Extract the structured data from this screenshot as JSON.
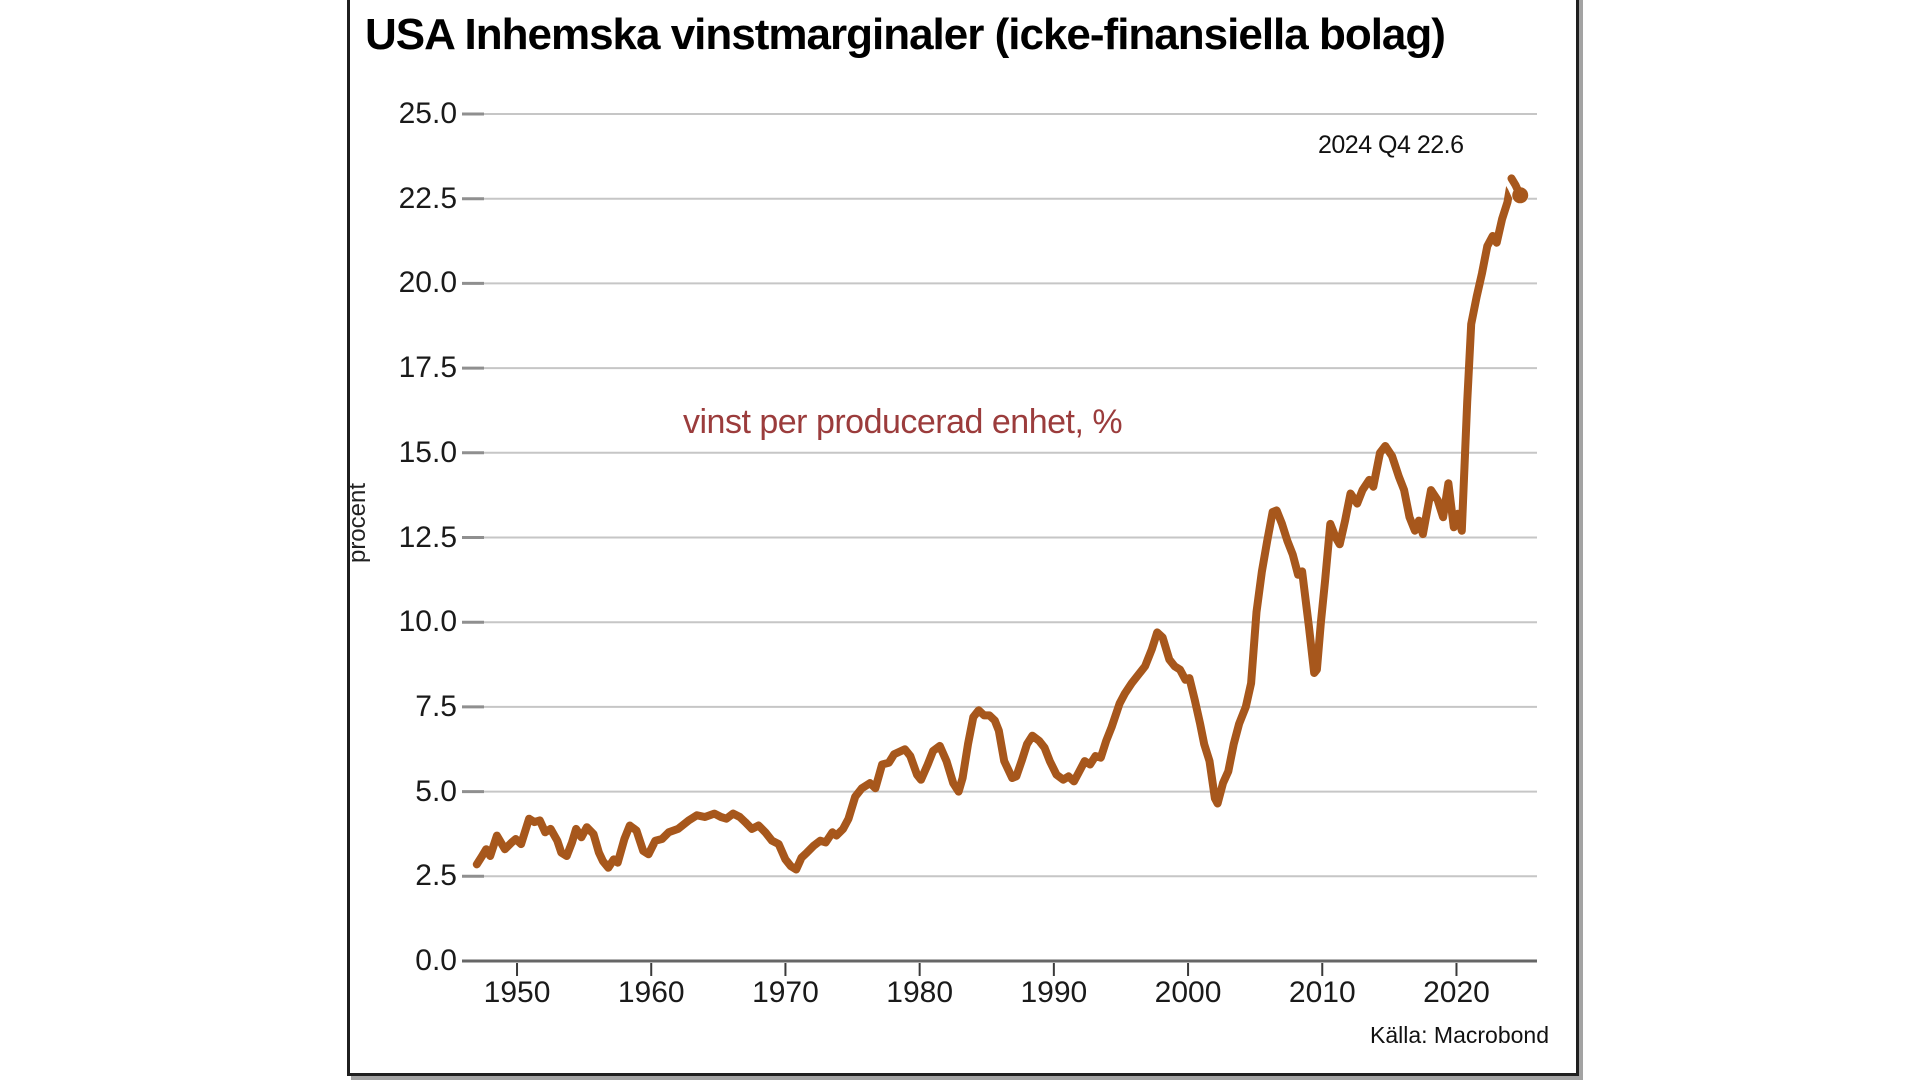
{
  "source": "Källa: Macrobond",
  "colors": {
    "line": "#A7571C",
    "series_label_text": "#9B3C3C",
    "grid": "#c6c6c6",
    "y_tick": "#8f8f8f",
    "x_tick": "#3a3a3a",
    "zero_axis": "#666666",
    "frame": "#1f1f1f",
    "frame_shadow": "#a3a3a3",
    "text": "#1a1a1a"
  },
  "chart_data": {
    "type": "line",
    "title": "USA Inhemska vinstmarginaler (icke-finansiella bolag)",
    "subtitle": "",
    "xlabel": "",
    "ylabel": "procent",
    "grid": "horizontal",
    "legend_position": "none",
    "ylim": [
      0,
      25
    ],
    "ytick_labels": [
      "0.0",
      "2.5",
      "5.0",
      "7.5",
      "10.0",
      "12.5",
      "15.0",
      "17.5",
      "20.0",
      "22.5",
      "25.0"
    ],
    "ytick_values": [
      0,
      2.5,
      5,
      7.5,
      10,
      12.5,
      15,
      17.5,
      20,
      22.5,
      25
    ],
    "xlim": [
      1945.9,
      2026.0
    ],
    "xtick_values": [
      1950,
      1960,
      1970,
      1980,
      1990,
      2000,
      2010,
      2020
    ],
    "xtick_labels": [
      "1950",
      "1960",
      "1970",
      "1980",
      "1990",
      "2000",
      "2010",
      "2020"
    ],
    "end_annotation": "2024 Q4 22.6",
    "end_point": [
      2024.75,
      22.6
    ],
    "series": [
      {
        "name": "vinst per producerad enhet, %",
        "color": "#A7571C",
        "points": [
          [
            1947.0,
            2.85
          ],
          [
            1947.4,
            3.1
          ],
          [
            1947.7,
            3.3
          ],
          [
            1948.0,
            3.1
          ],
          [
            1948.5,
            3.7
          ],
          [
            1949.1,
            3.3
          ],
          [
            1949.6,
            3.5
          ],
          [
            1949.9,
            3.6
          ],
          [
            1950.3,
            3.45
          ],
          [
            1950.9,
            4.2
          ],
          [
            1951.3,
            4.1
          ],
          [
            1951.7,
            4.15
          ],
          [
            1952.1,
            3.8
          ],
          [
            1952.5,
            3.9
          ],
          [
            1953.0,
            3.55
          ],
          [
            1953.3,
            3.2
          ],
          [
            1953.7,
            3.1
          ],
          [
            1954.1,
            3.5
          ],
          [
            1954.4,
            3.9
          ],
          [
            1954.8,
            3.65
          ],
          [
            1955.2,
            3.95
          ],
          [
            1955.7,
            3.75
          ],
          [
            1956.1,
            3.2
          ],
          [
            1956.4,
            2.95
          ],
          [
            1956.8,
            2.75
          ],
          [
            1957.2,
            3.0
          ],
          [
            1957.5,
            2.9
          ],
          [
            1958.0,
            3.6
          ],
          [
            1958.4,
            4.0
          ],
          [
            1958.9,
            3.85
          ],
          [
            1959.4,
            3.25
          ],
          [
            1959.8,
            3.15
          ],
          [
            1960.3,
            3.55
          ],
          [
            1960.8,
            3.6
          ],
          [
            1961.3,
            3.8
          ],
          [
            1962.0,
            3.9
          ],
          [
            1962.8,
            4.15
          ],
          [
            1963.4,
            4.3
          ],
          [
            1964.0,
            4.25
          ],
          [
            1964.7,
            4.35
          ],
          [
            1965.2,
            4.25
          ],
          [
            1965.6,
            4.2
          ],
          [
            1966.1,
            4.35
          ],
          [
            1966.6,
            4.25
          ],
          [
            1967.0,
            4.1
          ],
          [
            1967.5,
            3.9
          ],
          [
            1968.0,
            4.0
          ],
          [
            1968.5,
            3.8
          ],
          [
            1969.0,
            3.55
          ],
          [
            1969.5,
            3.45
          ],
          [
            1970.0,
            3.0
          ],
          [
            1970.4,
            2.8
          ],
          [
            1970.8,
            2.7
          ],
          [
            1971.2,
            3.05
          ],
          [
            1971.6,
            3.2
          ],
          [
            1972.1,
            3.4
          ],
          [
            1972.6,
            3.55
          ],
          [
            1973.0,
            3.5
          ],
          [
            1973.5,
            3.8
          ],
          [
            1973.8,
            3.7
          ],
          [
            1974.3,
            3.9
          ],
          [
            1974.7,
            4.2
          ],
          [
            1975.2,
            4.85
          ],
          [
            1975.7,
            5.1
          ],
          [
            1976.3,
            5.25
          ],
          [
            1976.7,
            5.1
          ],
          [
            1977.2,
            5.8
          ],
          [
            1977.7,
            5.85
          ],
          [
            1978.1,
            6.1
          ],
          [
            1978.9,
            6.25
          ],
          [
            1979.3,
            6.05
          ],
          [
            1979.8,
            5.5
          ],
          [
            1980.1,
            5.35
          ],
          [
            1980.6,
            5.8
          ],
          [
            1981.0,
            6.2
          ],
          [
            1981.5,
            6.35
          ],
          [
            1982.0,
            5.9
          ],
          [
            1982.5,
            5.25
          ],
          [
            1982.9,
            5.0
          ],
          [
            1983.2,
            5.4
          ],
          [
            1983.6,
            6.4
          ],
          [
            1984.0,
            7.2
          ],
          [
            1984.4,
            7.4
          ],
          [
            1984.8,
            7.25
          ],
          [
            1985.2,
            7.25
          ],
          [
            1985.6,
            7.1
          ],
          [
            1985.9,
            6.8
          ],
          [
            1986.3,
            5.9
          ],
          [
            1986.9,
            5.4
          ],
          [
            1987.2,
            5.45
          ],
          [
            1987.6,
            5.9
          ],
          [
            1988.0,
            6.4
          ],
          [
            1988.4,
            6.65
          ],
          [
            1988.9,
            6.5
          ],
          [
            1989.3,
            6.3
          ],
          [
            1989.7,
            5.9
          ],
          [
            1990.2,
            5.5
          ],
          [
            1990.7,
            5.35
          ],
          [
            1991.1,
            5.45
          ],
          [
            1991.5,
            5.3
          ],
          [
            1991.9,
            5.6
          ],
          [
            1992.3,
            5.9
          ],
          [
            1992.7,
            5.8
          ],
          [
            1993.1,
            6.05
          ],
          [
            1993.5,
            6.0
          ],
          [
            1993.9,
            6.5
          ],
          [
            1994.3,
            6.9
          ],
          [
            1994.9,
            7.6
          ],
          [
            1995.3,
            7.9
          ],
          [
            1995.8,
            8.2
          ],
          [
            1996.3,
            8.45
          ],
          [
            1996.8,
            8.7
          ],
          [
            1997.3,
            9.2
          ],
          [
            1997.7,
            9.7
          ],
          [
            1998.1,
            9.55
          ],
          [
            1998.6,
            8.9
          ],
          [
            1999.0,
            8.7
          ],
          [
            1999.4,
            8.6
          ],
          [
            1999.8,
            8.3
          ],
          [
            2000.1,
            8.35
          ],
          [
            2000.5,
            7.7
          ],
          [
            2000.9,
            7.0
          ],
          [
            2001.2,
            6.4
          ],
          [
            2001.6,
            5.9
          ],
          [
            2002.0,
            4.8
          ],
          [
            2002.2,
            4.65
          ],
          [
            2002.6,
            5.25
          ],
          [
            2003.0,
            5.6
          ],
          [
            2003.4,
            6.4
          ],
          [
            2003.8,
            7.0
          ],
          [
            2004.3,
            7.5
          ],
          [
            2004.7,
            8.2
          ],
          [
            2005.1,
            10.3
          ],
          [
            2005.5,
            11.5
          ],
          [
            2005.9,
            12.4
          ],
          [
            2006.3,
            13.25
          ],
          [
            2006.6,
            13.3
          ],
          [
            2007.0,
            12.9
          ],
          [
            2007.4,
            12.4
          ],
          [
            2007.8,
            12.0
          ],
          [
            2008.2,
            11.4
          ],
          [
            2008.5,
            11.5
          ],
          [
            2009.0,
            9.9
          ],
          [
            2009.4,
            8.5
          ],
          [
            2009.6,
            8.6
          ],
          [
            2009.9,
            10.0
          ],
          [
            2010.2,
            11.2
          ],
          [
            2010.6,
            12.9
          ],
          [
            2011.0,
            12.5
          ],
          [
            2011.3,
            12.3
          ],
          [
            2011.7,
            13.0
          ],
          [
            2012.1,
            13.8
          ],
          [
            2012.6,
            13.5
          ],
          [
            2013.0,
            13.9
          ],
          [
            2013.5,
            14.2
          ],
          [
            2013.8,
            14.0
          ],
          [
            2014.3,
            15.0
          ],
          [
            2014.7,
            15.2
          ],
          [
            2015.2,
            14.9
          ],
          [
            2015.7,
            14.3
          ],
          [
            2016.1,
            13.9
          ],
          [
            2016.5,
            13.1
          ],
          [
            2016.9,
            12.7
          ],
          [
            2017.2,
            13.0
          ],
          [
            2017.5,
            12.6
          ],
          [
            2018.1,
            13.9
          ],
          [
            2018.6,
            13.6
          ],
          [
            2019.0,
            13.1
          ],
          [
            2019.4,
            14.1
          ],
          [
            2019.8,
            12.8
          ],
          [
            2020.1,
            13.2
          ],
          [
            2020.4,
            12.7
          ],
          [
            2020.8,
            16.5
          ],
          [
            2021.1,
            18.8
          ],
          [
            2021.5,
            19.6
          ],
          [
            2021.9,
            20.3
          ],
          [
            2022.3,
            21.1
          ],
          [
            2022.7,
            21.4
          ],
          [
            2023.0,
            21.2
          ],
          [
            2023.4,
            21.9
          ],
          [
            2023.8,
            22.4
          ],
          [
            2024.1,
            23.1
          ],
          [
            2024.4,
            22.9
          ],
          [
            2024.75,
            22.6
          ]
        ]
      }
    ]
  }
}
